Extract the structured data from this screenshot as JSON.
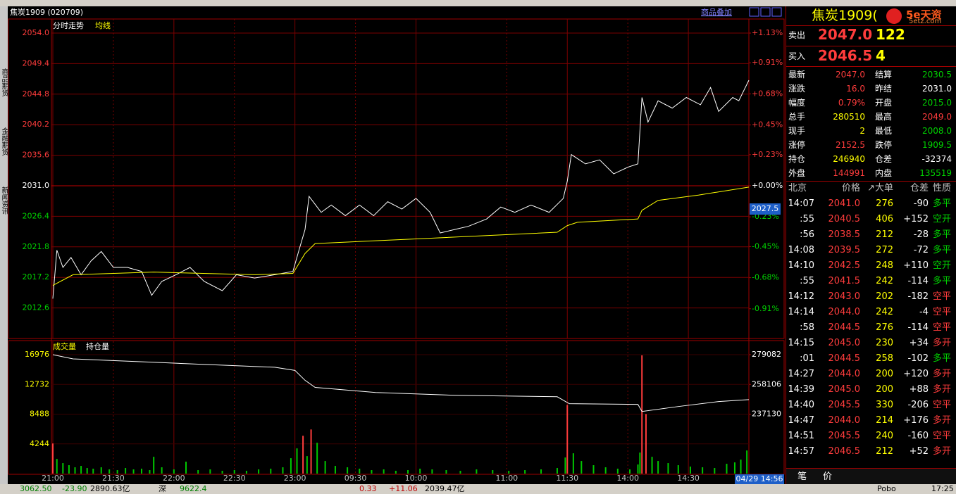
{
  "header": {
    "title": "焦炭1909 (020709)",
    "overlay_button": "商品叠加"
  },
  "side_tabs": [
    "商品期货",
    "金融期货",
    "新闻资讯"
  ],
  "chart_data": [
    {
      "type": "line",
      "xlim": [
        0,
        345
      ],
      "ylim": [
        2008,
        2054
      ],
      "baseline": 2031,
      "yticks": [
        {
          "value": 2054,
          "label": "2054.0"
        },
        2049.4,
        2044.8,
        2040.2,
        2035.6,
        {
          "value": 2031,
          "label": "2031.0"
        },
        2026.4,
        2021.8,
        2017.2,
        2012.6
      ],
      "y2lim": [
        -1.13,
        1.13
      ],
      "y2ticks": [
        {
          "value": 1.13,
          "label": "+1.13%"
        },
        {
          "value": 0.91,
          "label": "+0.91%"
        },
        {
          "value": 0.68,
          "label": "+0.68%"
        },
        {
          "value": 0.45,
          "label": "+0.45%"
        },
        {
          "value": 0.23,
          "label": "+0.23%"
        },
        {
          "value": 0,
          "label": "+0.00%"
        },
        {
          "value": -0.23,
          "label": "-0.23%"
        },
        {
          "value": -0.45,
          "label": "-0.45%"
        },
        {
          "value": -0.68,
          "label": "-0.68%"
        },
        {
          "value": -0.91,
          "label": "-0.91%"
        }
      ],
      "cursor_value": 2027.5,
      "series": [
        {
          "name": "分时走势",
          "color": "#ffffff",
          "x": [
            0,
            2,
            5,
            9,
            14,
            19,
            24,
            30,
            37,
            44,
            49,
            54,
            61,
            68,
            75,
            84,
            91,
            100,
            110,
            119,
            122,
            125,
            127,
            133,
            138,
            145,
            152,
            159,
            166,
            173,
            180,
            187,
            192,
            199,
            206,
            215,
            222,
            229,
            237,
            246,
            253,
            255,
            257,
            264,
            271,
            278,
            285,
            290,
            292,
            295,
            300,
            307,
            314,
            321,
            326,
            330,
            337,
            340,
            345
          ],
          "values": [
            2014.0,
            2021.3,
            2018.7,
            2020.2,
            2017.6,
            2019.7,
            2021.1,
            2018.7,
            2018.7,
            2018.1,
            2014.5,
            2016.6,
            2017.6,
            2018.7,
            2016.6,
            2015.2,
            2017.6,
            2017.1,
            2017.6,
            2018.1,
            2021.3,
            2024.4,
            2029.4,
            2027.0,
            2028.1,
            2026.5,
            2028.1,
            2026.5,
            2028.6,
            2027.5,
            2029.1,
            2027.0,
            2023.9,
            2024.4,
            2024.9,
            2026.0,
            2027.8,
            2027.0,
            2028.1,
            2027.0,
            2029.1,
            2031.7,
            2035.7,
            2034.3,
            2034.9,
            2032.8,
            2033.8,
            2034.3,
            2044.3,
            2040.6,
            2043.8,
            2042.7,
            2044.3,
            2043.2,
            2045.8,
            2042.2,
            2044.3,
            2043.8,
            2046.9
          ]
        },
        {
          "name": "均线",
          "color": "#ffff00",
          "x": [
            0,
            10,
            50,
            100,
            119,
            125,
            130,
            180,
            250,
            255,
            260,
            290,
            292,
            300,
            320,
            345
          ],
          "values": [
            2016.0,
            2017.6,
            2018.0,
            2017.6,
            2017.8,
            2020.8,
            2022.3,
            2023.0,
            2024.0,
            2025.0,
            2025.5,
            2026.0,
            2027.3,
            2028.8,
            2029.6,
            2030.8
          ]
        }
      ]
    },
    {
      "type": "bar",
      "xlim": [
        0,
        345
      ],
      "xticks": [
        {
          "value": 0,
          "label": "21:00"
        },
        {
          "value": 30,
          "label": "21:30"
        },
        {
          "value": 60,
          "label": "22:00"
        },
        {
          "value": 90,
          "label": "22:30"
        },
        {
          "value": 120,
          "label": "23:00"
        },
        {
          "value": 150,
          "label": "09:30"
        },
        {
          "value": 180,
          "label": "10:00"
        },
        {
          "value": 225,
          "label": "11:00"
        },
        {
          "value": 255,
          "label": "11:30"
        },
        {
          "value": 285,
          "label": "14:00"
        },
        {
          "value": 315,
          "label": "14:30"
        }
      ],
      "ylim": [
        0,
        16976
      ],
      "yticks": [
        4244,
        8488,
        12732,
        16976
      ],
      "y2lim": [
        195178,
        279082
      ],
      "y2ticks": [
        237130,
        258106,
        279082
      ],
      "cursor_time": "04/29 14:56",
      "series": [
        {
          "name": "成交量",
          "type": "bar",
          "color": "#ffff00",
          "x": [
            0,
            2,
            5,
            8,
            11,
            14,
            17,
            20,
            24,
            28,
            32,
            36,
            40,
            44,
            48,
            50,
            54,
            60,
            66,
            72,
            78,
            84,
            90,
            96,
            102,
            108,
            114,
            118,
            121,
            124,
            126,
            128,
            131,
            135,
            140,
            146,
            152,
            158,
            164,
            170,
            176,
            182,
            188,
            195,
            202,
            210,
            218,
            226,
            234,
            242,
            250,
            254,
            255,
            258,
            262,
            268,
            274,
            280,
            286,
            290,
            291,
            292,
            294,
            297,
            300,
            305,
            310,
            316,
            322,
            328,
            334,
            338,
            341,
            344
          ],
          "values": [
            4300,
            2100,
            1500,
            1200,
            900,
            1100,
            800,
            700,
            900,
            600,
            500,
            800,
            600,
            700,
            500,
            2400,
            900,
            600,
            1700,
            500,
            600,
            400,
            500,
            400,
            600,
            700,
            900,
            2200,
            3600,
            5400,
            2500,
            6300,
            4400,
            1800,
            1100,
            900,
            700,
            500,
            600,
            400,
            500,
            700,
            600,
            500,
            400,
            600,
            500,
            400,
            500,
            600,
            800,
            2300,
            9800,
            2900,
            1800,
            1200,
            900,
            700,
            600,
            1300,
            3000,
            16880,
            8500,
            2400,
            1800,
            1500,
            1200,
            1000,
            900,
            800,
            1400,
            1600,
            2000,
            3300
          ],
          "colors": [
            "#ff3c3c",
            "#00c800",
            "#00c800",
            "#00c800",
            "#00c800",
            "#00c800",
            "#00c800",
            "#00c800",
            "#00c800",
            "#00c800",
            "#00c800",
            "#00c800",
            "#00c800",
            "#00c800",
            "#00c800",
            "#00c800",
            "#00c800",
            "#00c800",
            "#00c800",
            "#00c800",
            "#00c800",
            "#00c800",
            "#00c800",
            "#00c800",
            "#00c800",
            "#00c800",
            "#00c800",
            "#00c800",
            "#00c800",
            "#ff3c3c",
            "#00c800",
            "#ff3c3c",
            "#00c800",
            "#00c800",
            "#00c800",
            "#00c800",
            "#00c800",
            "#00c800",
            "#00c800",
            "#00c800",
            "#00c800",
            "#00c800",
            "#00c800",
            "#00c800",
            "#00c800",
            "#00c800",
            "#00c800",
            "#00c800",
            "#00c800",
            "#00c800",
            "#00c800",
            "#00c800",
            "#ff3c3c",
            "#00c800",
            "#00c800",
            "#00c800",
            "#00c800",
            "#00c800",
            "#00c800",
            "#00c800",
            "#00c800",
            "#ff3c3c",
            "#ff3c3c",
            "#00c800",
            "#00c800",
            "#00c800",
            "#00c800",
            "#00c800",
            "#00c800",
            "#00c800",
            "#00c800",
            "#00c800",
            "#00c800",
            "#00c800"
          ]
        },
        {
          "name": "持仓量",
          "type": "line",
          "axis": "y2",
          "color": "#ffffff",
          "x": [
            0,
            10,
            60,
            110,
            120,
            125,
            130,
            160,
            200,
            250,
            256,
            290,
            292,
            310,
            330,
            345
          ],
          "values": [
            279082,
            276100,
            273100,
            270200,
            268000,
            261000,
            256000,
            252400,
            250400,
            249400,
            244500,
            244000,
            239000,
            242500,
            246000,
            247400
          ]
        }
      ]
    }
  ],
  "quote_panel": {
    "title": "焦炭1909(",
    "logo": "5e天资",
    "logo_site": "5etz.com",
    "ask": {
      "label": "卖出",
      "price": "2047.0",
      "volume": "122"
    },
    "bid": {
      "label": "买入",
      "price": "2046.5",
      "volume": "4"
    },
    "stats": [
      [
        {
          "label": "最新",
          "value": "2047.0",
          "color": "#ff3c3c"
        },
        {
          "label": "结算",
          "value": "2030.5",
          "color": "#00d200"
        }
      ],
      [
        {
          "label": "涨跌",
          "value": "16.0",
          "color": "#ff3c3c"
        },
        {
          "label": "昨结",
          "value": "2031.0",
          "color": "#ffffff"
        }
      ],
      [
        {
          "label": "幅度",
          "value": "0.79%",
          "color": "#ff3c3c"
        },
        {
          "label": "开盘",
          "value": "2015.0",
          "color": "#00d200"
        }
      ],
      [
        {
          "label": "总手",
          "value": "280510",
          "color": "#ffff00"
        },
        {
          "label": "最高",
          "value": "2049.0",
          "color": "#ff3c3c"
        }
      ],
      [
        {
          "label": "现手",
          "value": "2",
          "color": "#ffff00"
        },
        {
          "label": "最低",
          "value": "2008.0",
          "color": "#00d200"
        }
      ],
      [
        {
          "label": "涨停",
          "value": "2152.5",
          "color": "#ff3c3c"
        },
        {
          "label": "跌停",
          "value": "1909.5",
          "color": "#00d200"
        }
      ],
      [
        {
          "label": "持仓",
          "value": "246940",
          "color": "#ffff00"
        },
        {
          "label": "仓差",
          "value": "-32374",
          "color": "#ffffff"
        }
      ],
      [
        {
          "label": "外盘",
          "value": "144991",
          "color": "#ff3c3c"
        },
        {
          "label": "内盘",
          "value": "135519",
          "color": "#00d200"
        }
      ]
    ],
    "trades": {
      "header": [
        "北京",
        "价格",
        "↗大单",
        "仓差",
        "性质"
      ],
      "rows": [
        {
          "cells": [
            "14:07",
            "2041.0",
            "276",
            "-90",
            "多平"
          ],
          "nature_color": "#00d200"
        },
        {
          "cells": [
            ":55",
            "2040.5",
            "406",
            "+152",
            "空开"
          ],
          "nature_color": "#00d200"
        },
        {
          "cells": [
            ":56",
            "2038.5",
            "212",
            "-28",
            "多平"
          ],
          "nature_color": "#00d200"
        },
        {
          "cells": [
            "14:08",
            "2039.5",
            "272",
            "-72",
            "多平"
          ],
          "nature_color": "#00d200"
        },
        {
          "cells": [
            "14:10",
            "2042.5",
            "248",
            "+110",
            "空开"
          ],
          "nature_color": "#00d200"
        },
        {
          "cells": [
            ":55",
            "2041.5",
            "242",
            "-114",
            "多平"
          ],
          "nature_color": "#00d200"
        },
        {
          "cells": [
            "14:12",
            "2043.0",
            "202",
            "-182",
            "空平"
          ],
          "nature_color": "#ff3c3c"
        },
        {
          "cells": [
            "14:14",
            "2044.0",
            "242",
            "-4",
            "空平"
          ],
          "nature_color": "#ff3c3c"
        },
        {
          "cells": [
            ":58",
            "2044.5",
            "276",
            "-114",
            "空平"
          ],
          "nature_color": "#ff3c3c"
        },
        {
          "cells": [
            "14:15",
            "2045.0",
            "230",
            "+34",
            "多开"
          ],
          "nature_color": "#ff3c3c"
        },
        {
          "cells": [
            ":01",
            "2044.5",
            "258",
            "-102",
            "多平"
          ],
          "nature_color": "#00d200"
        },
        {
          "cells": [
            "14:27",
            "2044.0",
            "200",
            "+120",
            "多开"
          ],
          "nature_color": "#ff3c3c"
        },
        {
          "cells": [
            "14:39",
            "2045.0",
            "200",
            "+88",
            "多开"
          ],
          "nature_color": "#ff3c3c"
        },
        {
          "cells": [
            "14:40",
            "2045.5",
            "330",
            "-206",
            "空平"
          ],
          "nature_color": "#ff3c3c"
        },
        {
          "cells": [
            "14:47",
            "2044.0",
            "214",
            "+176",
            "多开"
          ],
          "nature_color": "#ff3c3c"
        },
        {
          "cells": [
            "14:51",
            "2045.5",
            "240",
            "-160",
            "空平"
          ],
          "nature_color": "#ff3c3c"
        },
        {
          "cells": [
            "14:57",
            "2046.5",
            "212",
            "+52",
            "多开"
          ],
          "nature_color": "#ff3c3c"
        }
      ]
    },
    "tabs": [
      "笔",
      "价"
    ]
  },
  "status_bar": {
    "items": [
      {
        "text": "3062.50",
        "color": "#008000"
      },
      {
        "text": "-23.90",
        "color": "#008000"
      },
      {
        "text": "2890.63亿",
        "color": "#000000"
      },
      {
        "text": "深",
        "color": "#000000"
      },
      {
        "text": "9622.4",
        "color": "#008000"
      },
      {
        "text": "0.33",
        "color": "#c00000"
      },
      {
        "text": "+11.06",
        "color": "#c00000"
      },
      {
        "text": "2039.47亿",
        "color": "#000000"
      }
    ],
    "brand": "Pobo",
    "clock": "17:25"
  }
}
